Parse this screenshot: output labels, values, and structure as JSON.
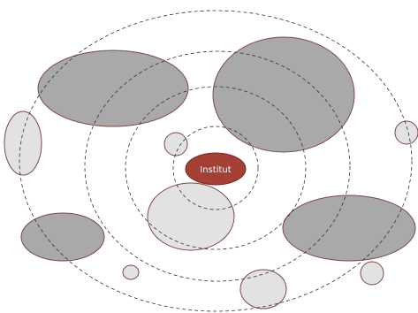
{
  "nodes": [
    {
      "label": "Institut"
    }
  ]
}
